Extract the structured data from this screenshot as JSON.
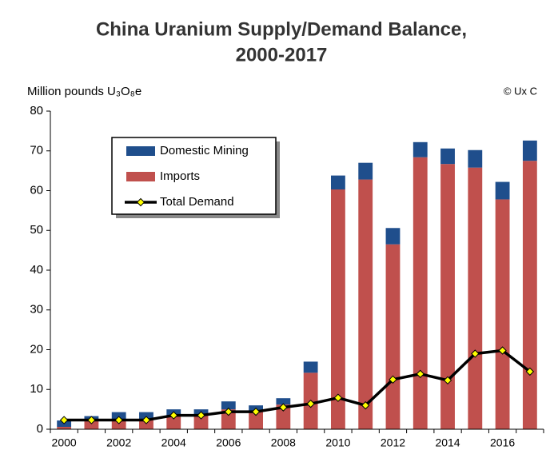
{
  "chart_data": {
    "type": "bar",
    "title_lines": [
      "China Uranium Supply/Demand Balance,",
      "2000-2017"
    ],
    "y_label": "Million pounds U₃O₈e",
    "source": "© Ux C",
    "x": [
      2000,
      2001,
      2002,
      2003,
      2004,
      2005,
      2006,
      2007,
      2008,
      2009,
      2010,
      2011,
      2012,
      2013,
      2014,
      2015,
      2016,
      2017
    ],
    "xlim": [
      1999.5,
      2017.5
    ],
    "xticks": [
      2000,
      2002,
      2004,
      2006,
      2008,
      2010,
      2012,
      2014,
      2016
    ],
    "ylim": [
      0,
      80
    ],
    "yticks": [
      0,
      10,
      20,
      30,
      40,
      50,
      60,
      70,
      80
    ],
    "grid": false,
    "legend": "upper-left",
    "series": [
      {
        "name": "Domestic Mining",
        "type": "bar",
        "color": "#1f4e8c",
        "values": [
          1.6,
          1.3,
          1.8,
          1.8,
          1.5,
          1.5,
          2.0,
          1.5,
          1.6,
          2.8,
          3.5,
          4.2,
          4.1,
          3.8,
          3.9,
          4.4,
          4.4,
          5.1
        ]
      },
      {
        "name": "Imports",
        "type": "bar",
        "color": "#c0504d",
        "values": [
          0.6,
          2.0,
          2.5,
          2.5,
          3.5,
          3.5,
          5.0,
          4.5,
          6.2,
          14.2,
          60.3,
          62.8,
          46.5,
          68.4,
          66.7,
          65.8,
          57.8,
          67.5
        ]
      },
      {
        "name": "Total Demand",
        "type": "line",
        "color": "#000000",
        "marker_color": "#ffff00",
        "values": [
          2.3,
          2.3,
          2.3,
          2.3,
          3.5,
          3.5,
          4.4,
          4.4,
          5.5,
          6.4,
          7.9,
          6.0,
          12.5,
          13.9,
          12.3,
          19.0,
          19.8,
          14.5
        ]
      }
    ]
  }
}
